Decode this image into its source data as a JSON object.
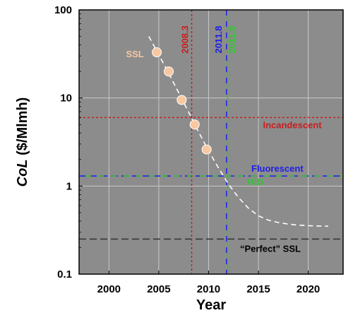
{
  "chart_data": {
    "type": "scatter",
    "xlabel": "Year",
    "ylabel_italic": "CoL",
    "ylabel_rest": " ($/Mlmh)",
    "xlim": [
      1997,
      2023.5
    ],
    "ylim": [
      0.1,
      100
    ],
    "y_scale": "log",
    "grid": true,
    "x_ticks": [
      2000,
      2005,
      2010,
      2015,
      2020
    ],
    "x_tick_labels": [
      "2000",
      "2005",
      "2010",
      "2015",
      "2020"
    ],
    "y_ticks": [
      0.1,
      1,
      10,
      100
    ],
    "y_tick_labels": [
      "0.1",
      "1",
      "10",
      "100"
    ],
    "background_color": "#8c8c8c",
    "grid_color": "#c8c8c8",
    "ssl_points": {
      "name": "SSL",
      "color": "#f7c8a2",
      "x": [
        2004.8,
        2006.0,
        2007.3,
        2008.6,
        2009.8
      ],
      "y": [
        33,
        20,
        9.5,
        5.0,
        2.6
      ]
    },
    "trend_curve": {
      "color": "#ffffff",
      "style": "dashed",
      "x": [
        2004,
        2005,
        2006,
        2007,
        2008,
        2009,
        2010,
        2011,
        2012,
        2013,
        2014,
        2015,
        2016,
        2017,
        2018,
        2019,
        2020,
        2021,
        2022
      ],
      "y": [
        50,
        31,
        19,
        11.5,
        6.9,
        4.1,
        2.5,
        1.6,
        1.05,
        0.74,
        0.56,
        0.46,
        0.41,
        0.385,
        0.37,
        0.36,
        0.355,
        0.352,
        0.35
      ]
    },
    "reference_lines": [
      {
        "name": "Incandescent",
        "y": 6.0,
        "color": "#c81e1e"
      },
      {
        "name": "Fluorescent",
        "y": 1.3,
        "color": "#1e1ee6"
      },
      {
        "name": "HID",
        "y": 1.3,
        "color": "#32c832"
      },
      {
        "name": "“Perfect” SSL",
        "y": 0.25,
        "color": "#333333"
      }
    ],
    "vertical_lines": [
      {
        "label": "2008.3",
        "x": 2008.3,
        "color": "#c81e1e"
      },
      {
        "label": "2011.8",
        "x": 2011.8,
        "color": "#1e1ee6"
      },
      {
        "label": "2011.8",
        "x": 2011.8,
        "color": "#32c832"
      }
    ]
  }
}
